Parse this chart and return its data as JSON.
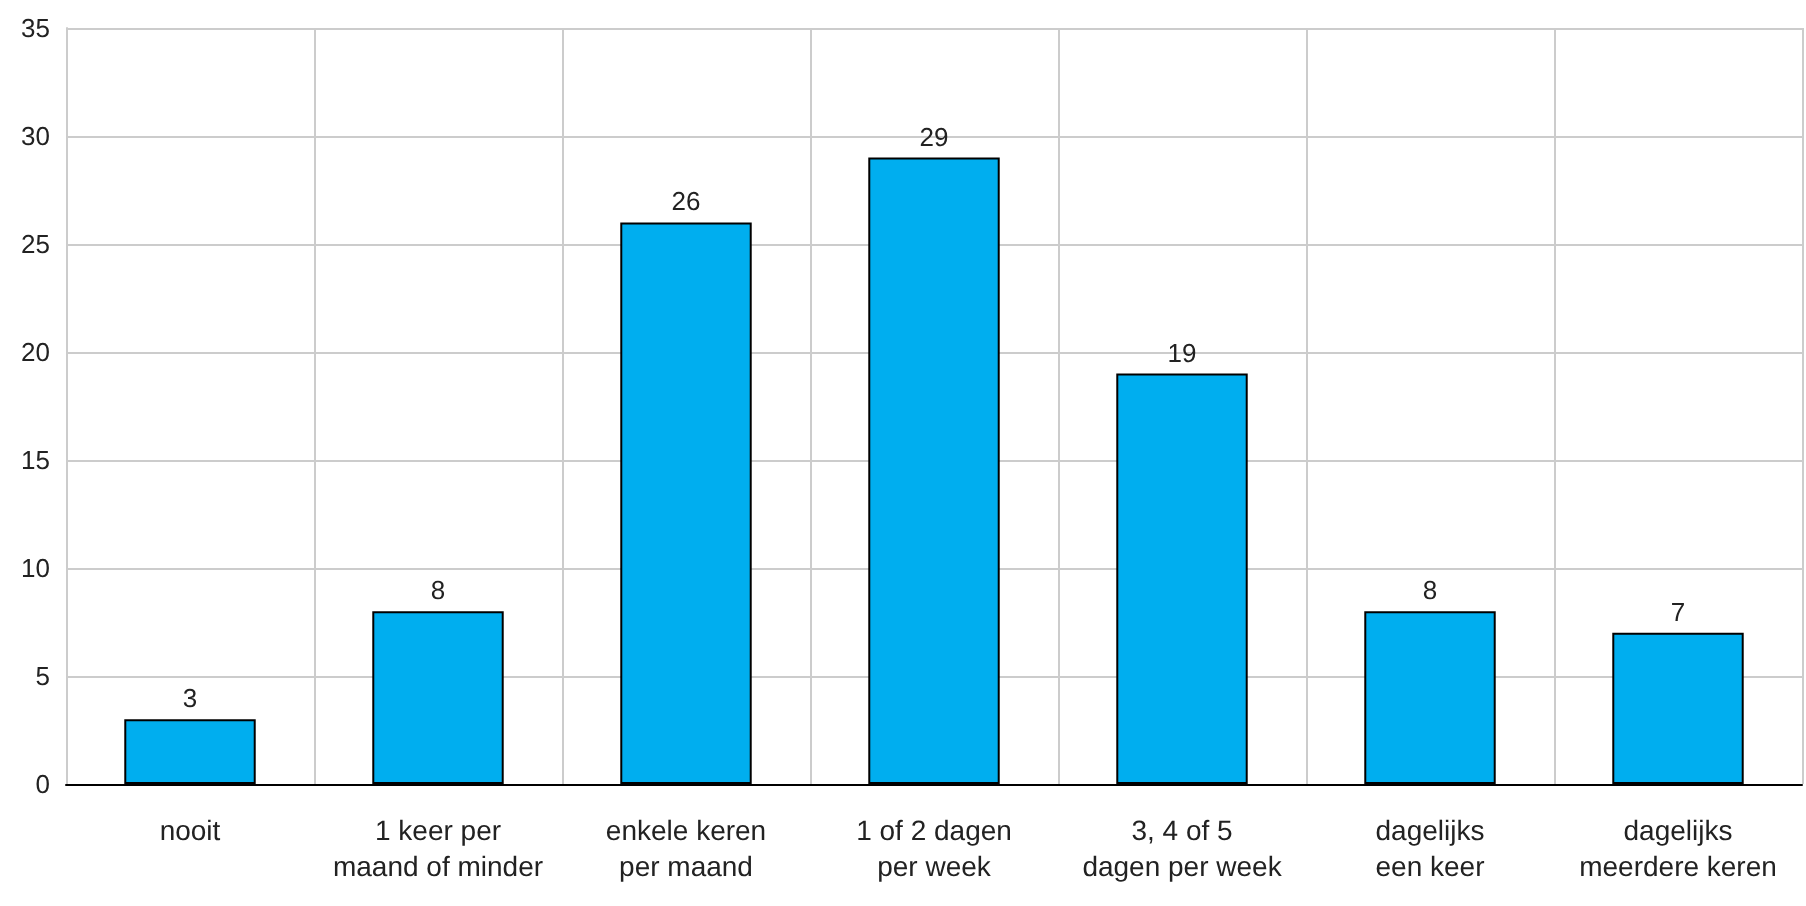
{
  "chart_data": {
    "type": "bar",
    "categories": [
      "nooit",
      "1 keer per\nmaand of minder",
      "enkele keren\nper maand",
      "1 of 2 dagen\nper week",
      "3, 4 of 5\ndagen per week",
      "dagelijks\neen keer",
      "dagelijks\nmeerdere keren"
    ],
    "values": [
      3,
      8,
      26,
      29,
      19,
      8,
      7
    ],
    "color": "#00aeef",
    "ylim": [
      0,
      35
    ],
    "yticks": [
      0,
      5,
      10,
      15,
      20,
      25,
      30,
      35
    ],
    "grid": true,
    "data_labels": true
  }
}
